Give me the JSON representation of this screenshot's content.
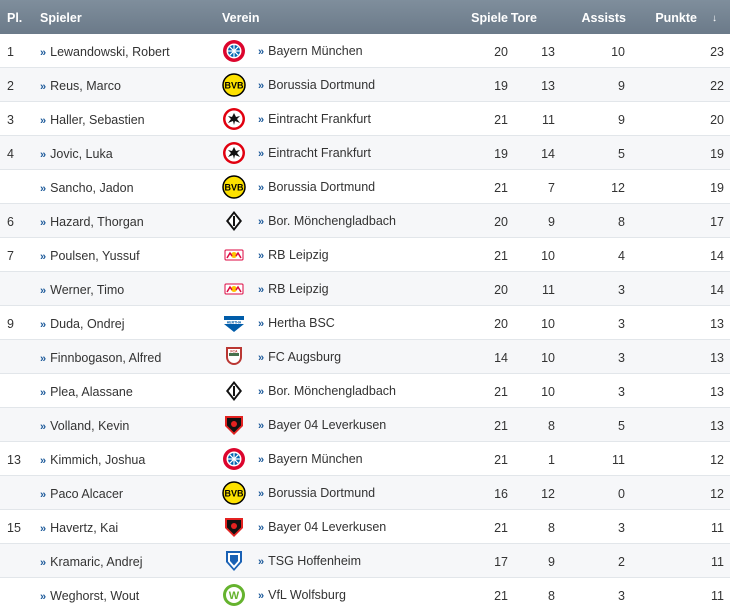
{
  "header": {
    "pl": "Pl.",
    "spieler": "Spieler",
    "verein": "Verein",
    "spiele": "Spiele",
    "tore": "Tore",
    "assists": "Assists",
    "punkte": "Punkte",
    "sort_glyph": "↓"
  },
  "link_glyph": "»",
  "rows": [
    {
      "pl": "1",
      "name": "Lewandowski, Robert",
      "club": "Bayern München",
      "crest": "bayern-icon",
      "spiele": "20",
      "tore": "13",
      "assists": "10",
      "punkte": "23"
    },
    {
      "pl": "2",
      "name": "Reus, Marco",
      "club": "Borussia Dortmund",
      "crest": "bvb-icon",
      "spiele": "19",
      "tore": "13",
      "assists": "9",
      "punkte": "22"
    },
    {
      "pl": "3",
      "name": "Haller, Sebastien",
      "club": "Eintracht Frankfurt",
      "crest": "eintracht-icon",
      "spiele": "21",
      "tore": "11",
      "assists": "9",
      "punkte": "20"
    },
    {
      "pl": "4",
      "name": "Jovic, Luka",
      "club": "Eintracht Frankfurt",
      "crest": "eintracht-icon",
      "spiele": "19",
      "tore": "14",
      "assists": "5",
      "punkte": "19"
    },
    {
      "pl": "",
      "name": "Sancho, Jadon",
      "club": "Borussia Dortmund",
      "crest": "bvb-icon",
      "spiele": "21",
      "tore": "7",
      "assists": "12",
      "punkte": "19"
    },
    {
      "pl": "6",
      "name": "Hazard, Thorgan",
      "club": "Bor. Mönchengladbach",
      "crest": "gladbach-icon",
      "spiele": "20",
      "tore": "9",
      "assists": "8",
      "punkte": "17"
    },
    {
      "pl": "7",
      "name": "Poulsen, Yussuf",
      "club": "RB Leipzig",
      "crest": "leipzig-icon",
      "spiele": "21",
      "tore": "10",
      "assists": "4",
      "punkte": "14"
    },
    {
      "pl": "",
      "name": "Werner, Timo",
      "club": "RB Leipzig",
      "crest": "leipzig-icon",
      "spiele": "20",
      "tore": "11",
      "assists": "3",
      "punkte": "14"
    },
    {
      "pl": "9",
      "name": "Duda, Ondrej",
      "club": "Hertha BSC",
      "crest": "hertha-icon",
      "spiele": "20",
      "tore": "10",
      "assists": "3",
      "punkte": "13"
    },
    {
      "pl": "",
      "name": "Finnbogason, Alfred",
      "club": "FC Augsburg",
      "crest": "augsburg-icon",
      "spiele": "14",
      "tore": "10",
      "assists": "3",
      "punkte": "13"
    },
    {
      "pl": "",
      "name": "Plea, Alassane",
      "club": "Bor. Mönchengladbach",
      "crest": "gladbach-icon",
      "spiele": "21",
      "tore": "10",
      "assists": "3",
      "punkte": "13"
    },
    {
      "pl": "",
      "name": "Volland, Kevin",
      "club": "Bayer 04 Leverkusen",
      "crest": "leverkusen-icon",
      "spiele": "21",
      "tore": "8",
      "assists": "5",
      "punkte": "13"
    },
    {
      "pl": "13",
      "name": "Kimmich, Joshua",
      "club": "Bayern München",
      "crest": "bayern-icon",
      "spiele": "21",
      "tore": "1",
      "assists": "11",
      "punkte": "12"
    },
    {
      "pl": "",
      "name": "Paco Alcacer",
      "club": "Borussia Dortmund",
      "crest": "bvb-icon",
      "spiele": "16",
      "tore": "12",
      "assists": "0",
      "punkte": "12"
    },
    {
      "pl": "15",
      "name": "Havertz, Kai",
      "club": "Bayer 04 Leverkusen",
      "crest": "leverkusen-icon",
      "spiele": "21",
      "tore": "8",
      "assists": "3",
      "punkte": "11"
    },
    {
      "pl": "",
      "name": "Kramaric, Andrej",
      "club": "TSG Hoffenheim",
      "crest": "hoffenheim-icon",
      "spiele": "17",
      "tore": "9",
      "assists": "2",
      "punkte": "11"
    },
    {
      "pl": "",
      "name": "Weghorst, Wout",
      "club": "VfL Wolfsburg",
      "crest": "wolfsburg-icon",
      "spiele": "21",
      "tore": "8",
      "assists": "3",
      "punkte": "11"
    }
  ]
}
